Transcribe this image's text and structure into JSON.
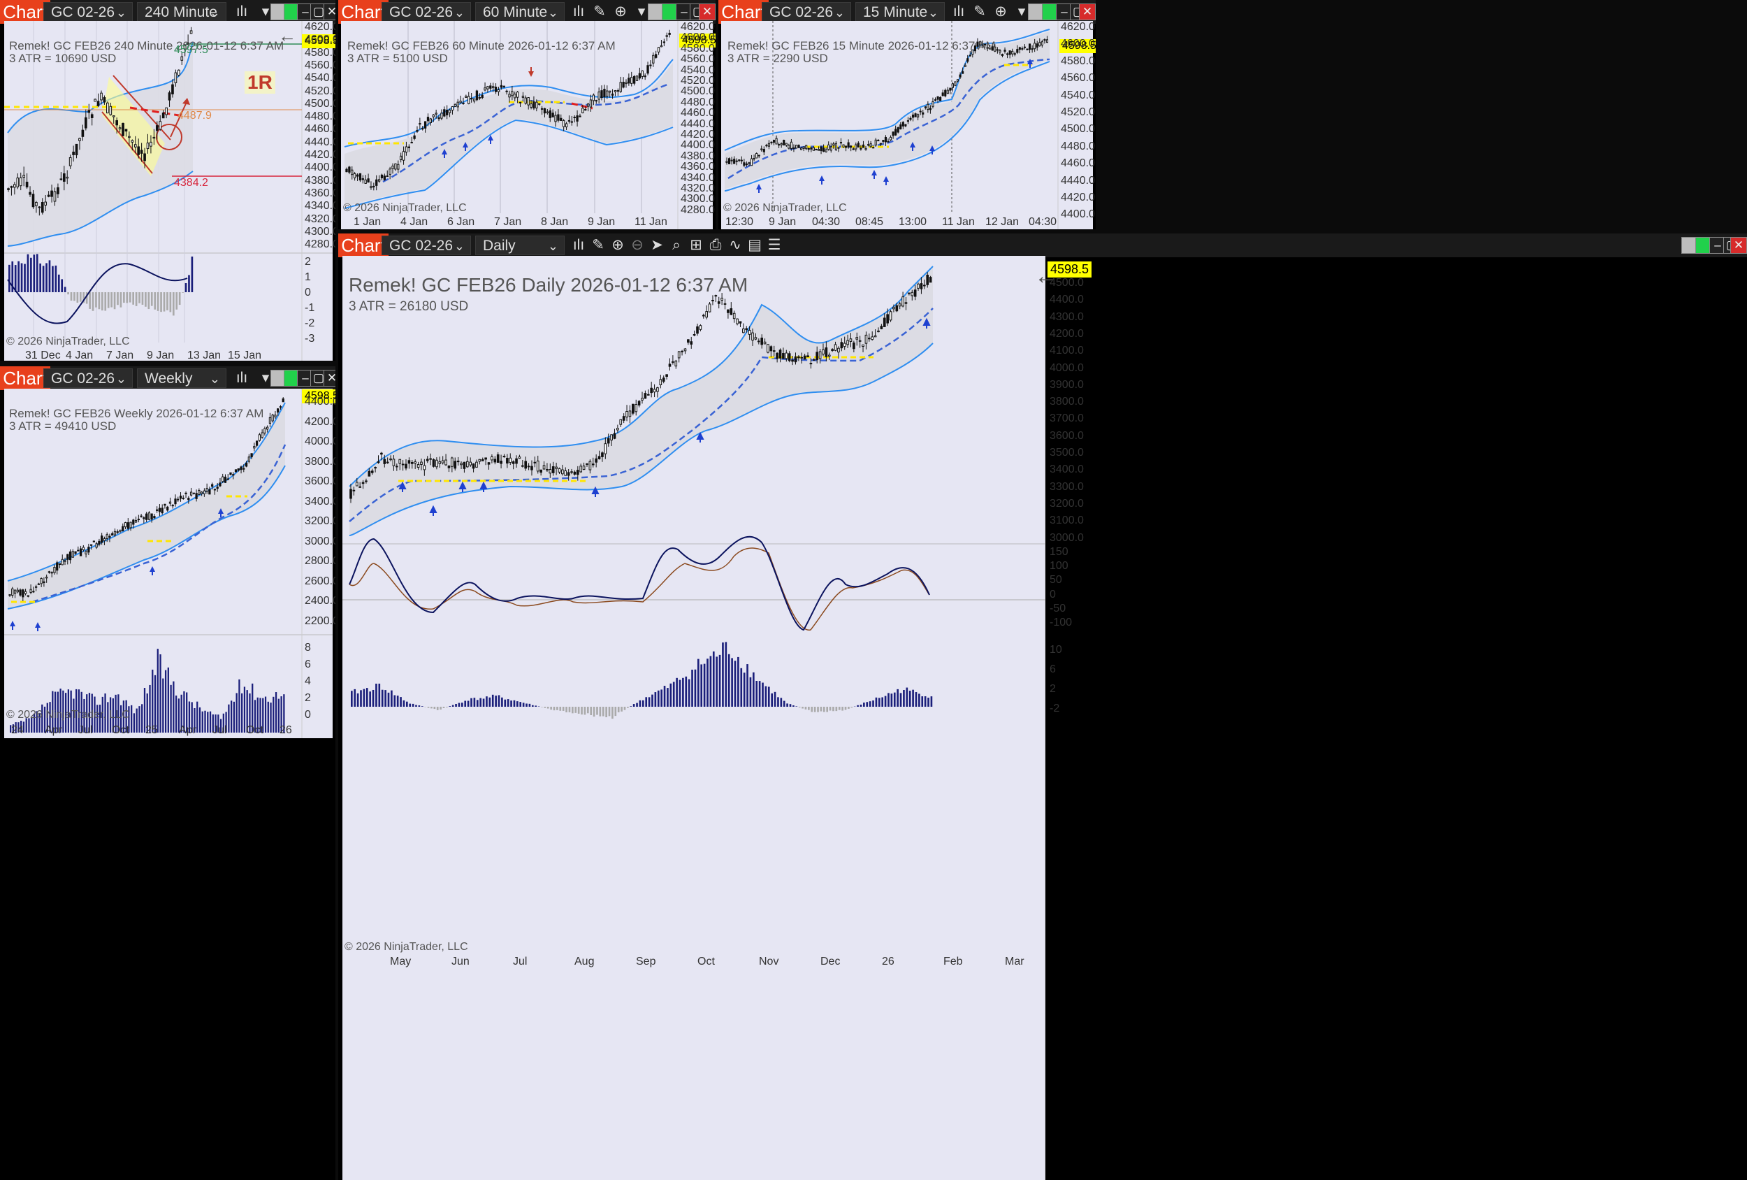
{
  "app": {
    "chart_label": "Chart",
    "copyright": "© 2026 NinjaTrader, LLC",
    "current_price": "4598.5"
  },
  "colors": {
    "accent": "#e8401c",
    "plot_background": "#e6e6f3",
    "price_tag": "#ffff00",
    "bollinger": "#2f8ef0",
    "trail_dashed": "#3a63d4",
    "oscillator_bar": "#1a1e7a",
    "oscillator_line": "#0b135e"
  },
  "windows": {
    "w240": {
      "instrument": "GC 02-26",
      "timeframe": "240 Minute",
      "header_line1": "Remek!  GC FEB26  240 Minute  2026-01-12 6:37 AM",
      "header_line2": "3 ATR = 10690 USD",
      "price_label": "4598.5",
      "y_labels": [
        "4620.0",
        "4600.0",
        "4580.0",
        "4560.0",
        "4540.0",
        "4520.0",
        "4500.0",
        "4480.0",
        "4460.0",
        "4440.0",
        "4420.0",
        "4400.0",
        "4380.0",
        "4360.0",
        "4340.0",
        "4320.0",
        "4300.0",
        "4280.0"
      ],
      "x_labels": [
        "31 Dec",
        "4 Jan",
        "7 Jan",
        "9 Jan",
        "13 Jan",
        "15 Jan"
      ],
      "osc_labels": [
        "2",
        "1",
        "0",
        "-1",
        "-2",
        "-3"
      ],
      "annotations": {
        "r_label": "1R",
        "level_high": "4487.9",
        "level_low": "4384.2",
        "level_top": "4597.5"
      }
    },
    "w60": {
      "instrument": "GC 02-26",
      "timeframe": "60 Minute",
      "header_line1": "Remek!  GC FEB26  60 Minute  2026-01-12 6:37 AM",
      "header_line2": "3 ATR = 5100 USD",
      "price_label": "4598.5",
      "y_labels": [
        "4620.0",
        "4600.0",
        "4580.0",
        "4560.0",
        "4540.0",
        "4520.0",
        "4500.0",
        "4480.0",
        "4460.0",
        "4440.0",
        "4420.0",
        "4400.0",
        "4380.0",
        "4360.0",
        "4340.0",
        "4320.0",
        "4300.0",
        "4280.0"
      ],
      "x_labels": [
        "1 Jan",
        "4 Jan",
        "6 Jan",
        "7 Jan",
        "8 Jan",
        "9 Jan",
        "11 Jan"
      ]
    },
    "w15": {
      "instrument": "GC 02-26",
      "timeframe": "15 Minute",
      "header_line1": "Remek!  GC FEB26  15 Minute  2026-01-12 6:37 AM",
      "header_line2": "3 ATR = 2290 USD",
      "price_label": "4598.5",
      "y_labels": [
        "4620.0",
        "4600.0",
        "4580.0",
        "4560.0",
        "4540.0",
        "4520.0",
        "4500.0",
        "4480.0",
        "4460.0",
        "4440.0",
        "4420.0",
        "4400.0"
      ],
      "x_labels": [
        "12:30",
        "9 Jan",
        "04:30",
        "08:45",
        "13:00",
        "11 Jan",
        "12 Jan",
        "04:30"
      ]
    },
    "wweekly": {
      "instrument": "GC 02-26",
      "timeframe": "Weekly",
      "header_line1": "Remek!  GC FEB26  Weekly  2026-01-12 6:37 AM",
      "header_line2": "3 ATR = 49410 USD",
      "price_label": "4598.5",
      "y_labels": [
        "4400.0",
        "4200.0",
        "4000.0",
        "3800.0",
        "3600.0",
        "3400.0",
        "3200.0",
        "3000.0",
        "2800.0",
        "2600.0",
        "2400.0",
        "2200.0"
      ],
      "x_labels": [
        "24",
        "Apr",
        "Jul",
        "Oct",
        "25",
        "Apr",
        "Jul",
        "Oct",
        "26"
      ],
      "osc_labels": [
        "8",
        "6",
        "4",
        "2",
        "0"
      ]
    },
    "wdaily": {
      "instrument": "GC 02-26",
      "timeframe": "Daily",
      "header_line1": "Remek!  GC FEB26  Daily  2026-01-12 6:37 AM",
      "header_line2": "3 ATR = 26180 USD",
      "price_label": "4598.5",
      "y_labels": [
        "4500.0",
        "4400.0",
        "4300.0",
        "4200.0",
        "4100.0",
        "4000.0",
        "3900.0",
        "3800.0",
        "3700.0",
        "3600.0",
        "3500.0",
        "3400.0",
        "3300.0",
        "3200.0",
        "3100.0",
        "3000.0"
      ],
      "x_labels": [
        "May",
        "Jun",
        "Jul",
        "Aug",
        "Sep",
        "Oct",
        "Nov",
        "Dec",
        "26",
        "Feb",
        "Mar"
      ],
      "osc1_labels": [
        "150",
        "100",
        "50",
        "0",
        "-50",
        "-100"
      ],
      "osc2_labels": [
        "10",
        "6",
        "2",
        "-2"
      ]
    }
  }
}
